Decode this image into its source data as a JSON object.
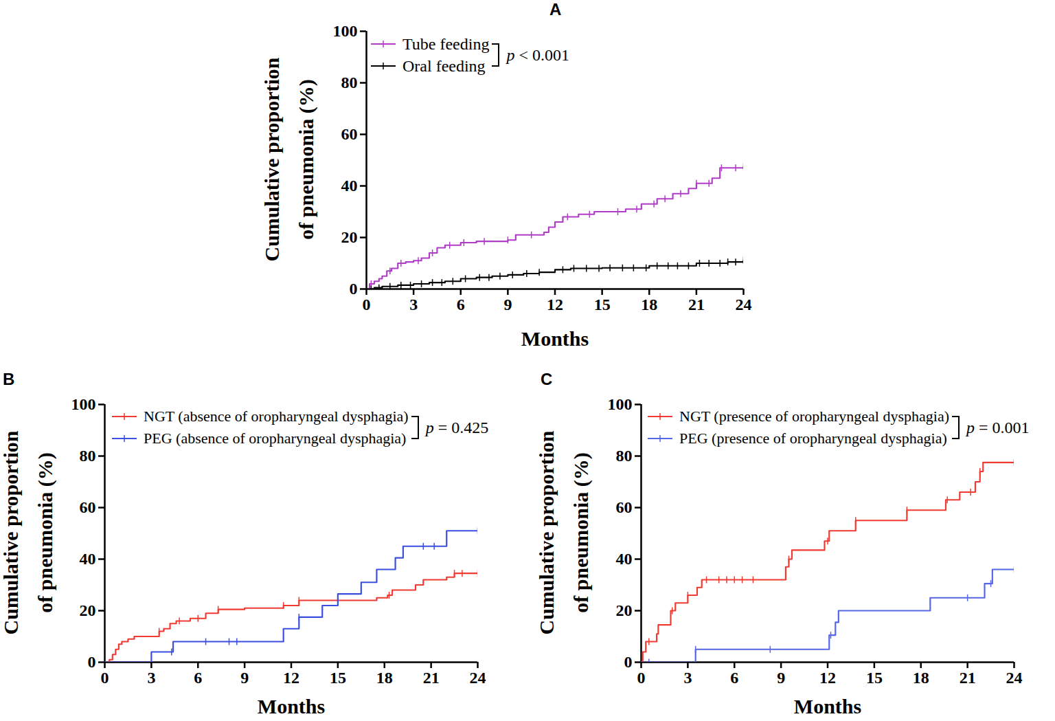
{
  "chart_data": [
    {
      "type": "line",
      "title": "A",
      "x_label": "Months",
      "y_label": "Cumulative proportion\nof pneumonia (%)",
      "annotation": "p < 0.001",
      "line_style": "step",
      "marker": "tick",
      "xlim": [
        0,
        24
      ],
      "xticks": [
        0,
        3,
        6,
        9,
        12,
        15,
        18,
        21,
        24
      ],
      "ylim": [
        0,
        100
      ],
      "yticks": [
        0,
        20,
        40,
        60,
        80,
        100
      ],
      "series": [
        {
          "name": "Tube feeding",
          "color": "#b03cc8",
          "x": [
            0,
            0.2,
            0.5,
            0.8,
            1.0,
            1.3,
            1.6,
            2.0,
            2.5,
            3.0,
            3.5,
            4.0,
            4.5,
            5.0,
            6.0,
            7.0,
            9.0,
            9.5,
            11.3,
            11.6,
            12.0,
            12.5,
            13.5,
            14.5,
            16.5,
            17.5,
            18.5,
            19.5,
            20.5,
            21.0,
            22.0,
            22.5,
            24
          ],
          "values": [
            0,
            2,
            3,
            4,
            5,
            7,
            8,
            10,
            10.5,
            11,
            12,
            14,
            16,
            17,
            18,
            18.5,
            19,
            21,
            22,
            24,
            26,
            28,
            29,
            30,
            31,
            33,
            35,
            37,
            39,
            41,
            43,
            47,
            47.5
          ],
          "censored": [
            0.3,
            1.5,
            2.2,
            3.3,
            4.2,
            5.3,
            6.2,
            7.5,
            9.0,
            10.5,
            12.8,
            14.2,
            16.0,
            17.2,
            18.3,
            19.0,
            20.0,
            21.0,
            21.8,
            22.6,
            23.5,
            24
          ]
        },
        {
          "name": "Oral feeding",
          "color": "#000000",
          "x": [
            0,
            0.5,
            1,
            2,
            3,
            4,
            5,
            6,
            7,
            8,
            9,
            10,
            11,
            12,
            13,
            15,
            18,
            21,
            23,
            24
          ],
          "values": [
            0,
            0.5,
            1,
            1.5,
            2,
            2.5,
            3,
            4,
            4.5,
            5,
            5.5,
            6,
            6.5,
            7.5,
            8,
            8.2,
            9,
            10,
            10.5,
            11
          ],
          "censored": [
            0.3,
            0.8,
            1.5,
            2.2,
            2.8,
            3.5,
            4.2,
            4.8,
            5.5,
            6.3,
            7.2,
            7.8,
            8.5,
            9.3,
            10.2,
            11.0,
            12.5,
            13.2,
            14.0,
            14.8,
            15.5,
            16.3,
            17.0,
            17.8,
            18.5,
            19.2,
            19.8,
            20.5,
            21.2,
            21.8,
            22.5,
            23.0,
            23.5,
            24
          ]
        }
      ]
    },
    {
      "type": "line",
      "title": "B",
      "x_label": "Months",
      "y_label": "Cumulative proportion\nof pneumonia (%)",
      "annotation": "p = 0.425",
      "line_style": "step",
      "marker": "tick",
      "xlim": [
        0,
        24
      ],
      "xticks": [
        0,
        3,
        6,
        9,
        12,
        15,
        18,
        21,
        24
      ],
      "ylim": [
        0,
        100
      ],
      "yticks": [
        0,
        20,
        40,
        60,
        80,
        100
      ],
      "series": [
        {
          "name": "NGT (absence of oropharyngeal dysphagia)",
          "color": "#f03a32",
          "x": [
            0,
            0.3,
            0.5,
            0.7,
            0.9,
            1.1,
            1.5,
            1.9,
            3.5,
            3.8,
            4.2,
            4.6,
            5.5,
            6.5,
            7.3,
            9,
            11.5,
            12.5,
            17.5,
            18.2,
            18.5,
            20,
            20.5,
            22,
            22.5,
            24
          ],
          "values": [
            0,
            1,
            3,
            5,
            7,
            8,
            9,
            10,
            12,
            13,
            15,
            16,
            17,
            19,
            20.5,
            21,
            22,
            24,
            25,
            26,
            28,
            30,
            32,
            33,
            34.5,
            34.5
          ],
          "censored": [
            3.5,
            4.8,
            6.0,
            7.3,
            11.5,
            12.5,
            18.3,
            22.5,
            23,
            24
          ]
        },
        {
          "name": "PEG (absence of oropharyngeal dysphagia)",
          "color": "#3b4fe0",
          "x": [
            0,
            3,
            4.4,
            11.5,
            12.5,
            14,
            15,
            16.5,
            17.5,
            18.7,
            19.2,
            22,
            24
          ],
          "values": [
            0,
            4,
            8,
            13,
            17.5,
            22,
            26.5,
            31,
            36,
            40.5,
            45,
            51,
            51
          ],
          "censored": [
            4.3,
            6.5,
            8,
            8.5,
            12.5,
            20.5,
            21.2,
            24
          ]
        }
      ]
    },
    {
      "type": "line",
      "title": "C",
      "x_label": "Months",
      "y_label": "Cumulative proportion\nof pneumonia (%)",
      "annotation": "p = 0.001",
      "line_style": "step",
      "marker": "tick",
      "xlim": [
        0,
        24
      ],
      "xticks": [
        0,
        3,
        6,
        9,
        12,
        15,
        18,
        21,
        24
      ],
      "ylim": [
        0,
        100
      ],
      "yticks": [
        0,
        20,
        40,
        60,
        80,
        100
      ],
      "series": [
        {
          "name": "NGT (presence of oropharyngeal dysphagia)",
          "color": "#f03a32",
          "x": [
            0,
            0.1,
            0.3,
            1.0,
            1.1,
            1.9,
            2.2,
            3.0,
            3.6,
            3.9,
            9.3,
            9.5,
            9.7,
            11.8,
            12.1,
            13.8,
            17.1,
            19.6,
            20.5,
            21.5,
            21.8,
            22,
            24
          ],
          "values": [
            0,
            4,
            8,
            11,
            14.5,
            20,
            23,
            26,
            29,
            32,
            37,
            40,
            43.5,
            47,
            51,
            55,
            59,
            63,
            66,
            70,
            74,
            77.5,
            77.5
          ],
          "censored": [
            0.5,
            2.0,
            3.0,
            4.2,
            5,
            5.5,
            6,
            6.5,
            7.2,
            9.5,
            12,
            13.8,
            17.1,
            19.7,
            21.2,
            21.8,
            24
          ]
        },
        {
          "name": "PEG (presence of oropharyngeal dysphagia)",
          "color": "#5566e8",
          "x": [
            0,
            3.5,
            12.1,
            12.5,
            12.7,
            18.6,
            22.1,
            22.6,
            24
          ],
          "values": [
            0,
            5,
            10.5,
            15.5,
            20,
            25,
            30.5,
            36,
            36
          ],
          "censored": [
            0.5,
            3.5,
            8.3,
            12.2,
            21,
            22.5,
            24
          ]
        }
      ]
    }
  ]
}
